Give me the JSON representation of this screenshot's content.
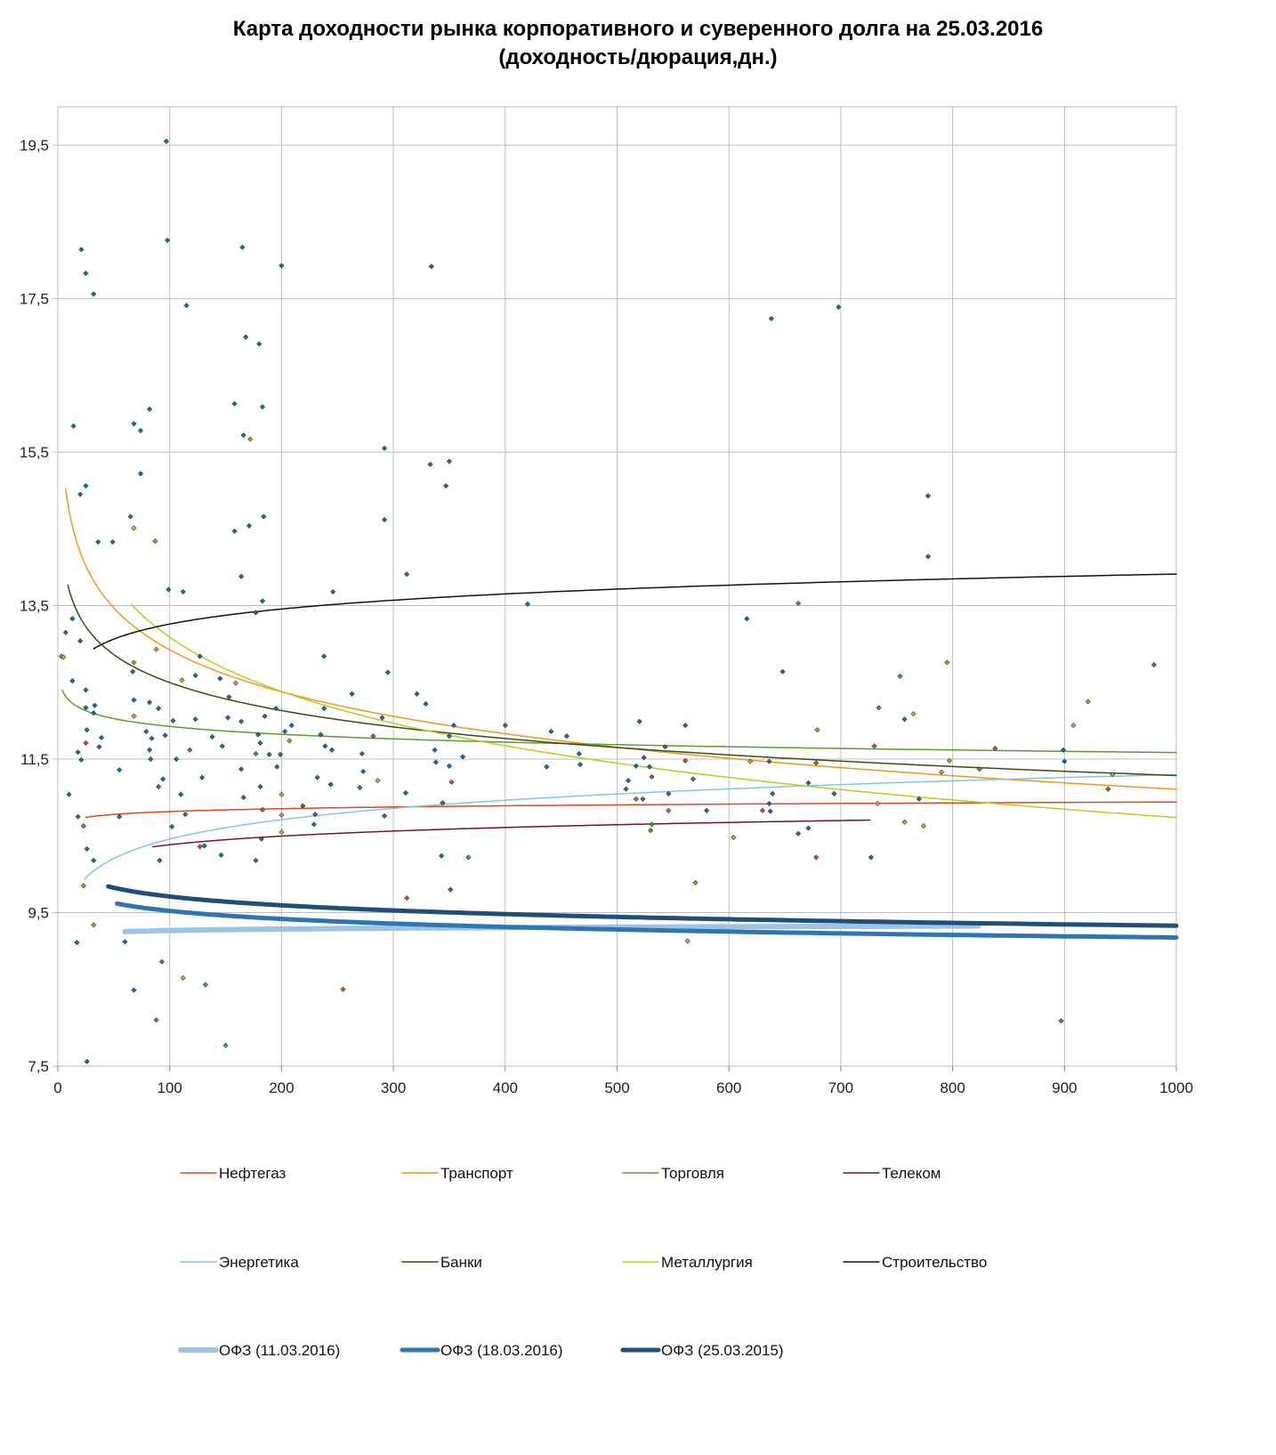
{
  "chart_data": {
    "type": "scatter",
    "title": "Карта доходности рынка корпоративного и суверенного долга на 25.03.2016",
    "subtitle": "(доходность/дюрация,дн.)",
    "xlabel": "",
    "ylabel": "",
    "xlim": [
      0,
      1000
    ],
    "ylim": [
      7.5,
      20
    ],
    "x_ticks": [
      0,
      100,
      200,
      300,
      400,
      500,
      600,
      700,
      800,
      900,
      1000
    ],
    "y_ticks": [
      7.5,
      9.5,
      11.5,
      13.5,
      15.5,
      17.5,
      19.5
    ],
    "y_tick_labels": [
      "7,5",
      "9,5",
      "11,5",
      "13,5",
      "15,5",
      "17,5",
      "19,5"
    ],
    "grid": true,
    "legend_position": "bottom",
    "point_colors": {
      "t": "#2a6d8f",
      "o": "#f29a3c",
      "r": "#e8461e",
      "g": "#5a9e2f",
      "y": "#b7a90c",
      "b": "#a0522d"
    },
    "points": [
      [
        97,
        19.55,
        "t"
      ],
      [
        98,
        18.26,
        "t"
      ],
      [
        21,
        18.14,
        "t"
      ],
      [
        25,
        17.83,
        "t"
      ],
      [
        32,
        17.56,
        "t"
      ],
      [
        165,
        18.17,
        "t"
      ],
      [
        200,
        17.93,
        "t"
      ],
      [
        334,
        17.92,
        "t"
      ],
      [
        115,
        17.41,
        "t"
      ],
      [
        638,
        17.24,
        "t"
      ],
      [
        698,
        17.39,
        "t"
      ],
      [
        168,
        17.0,
        "t"
      ],
      [
        180,
        16.91,
        "t"
      ],
      [
        158,
        16.13,
        "t"
      ],
      [
        183,
        16.09,
        "t"
      ],
      [
        82,
        16.06,
        "t"
      ],
      [
        14,
        15.84,
        "t"
      ],
      [
        68,
        15.87,
        "t"
      ],
      [
        74,
        15.78,
        "t"
      ],
      [
        166,
        15.72,
        "t"
      ],
      [
        172,
        15.67,
        "y"
      ],
      [
        292,
        15.55,
        "t"
      ],
      [
        333,
        15.34,
        "t"
      ],
      [
        350,
        15.38,
        "t"
      ],
      [
        74,
        15.22,
        "t"
      ],
      [
        347,
        15.06,
        "t"
      ],
      [
        25,
        15.06,
        "t"
      ],
      [
        20,
        14.95,
        "t"
      ],
      [
        778,
        14.93,
        "t"
      ],
      [
        65,
        14.66,
        "t"
      ],
      [
        68,
        14.51,
        "o"
      ],
      [
        184,
        14.66,
        "t"
      ],
      [
        292,
        14.62,
        "t"
      ],
      [
        171,
        14.54,
        "t"
      ],
      [
        158,
        14.47,
        "t"
      ],
      [
        36,
        14.33,
        "t"
      ],
      [
        49,
        14.33,
        "t"
      ],
      [
        87,
        14.34,
        "y"
      ],
      [
        778,
        14.14,
        "t"
      ],
      [
        312,
        13.91,
        "t"
      ],
      [
        164,
        13.88,
        "t"
      ],
      [
        99,
        13.71,
        "t"
      ],
      [
        112,
        13.68,
        "t"
      ],
      [
        246,
        13.68,
        "t"
      ],
      [
        183,
        13.56,
        "t"
      ],
      [
        420,
        13.52,
        "t"
      ],
      [
        662,
        13.53,
        "g"
      ],
      [
        177,
        13.41,
        "t"
      ],
      [
        13,
        13.33,
        "t"
      ],
      [
        616,
        13.33,
        "t"
      ],
      [
        7,
        13.15,
        "t"
      ],
      [
        20,
        13.04,
        "t"
      ],
      [
        3,
        12.84,
        "y"
      ],
      [
        5,
        12.83,
        "o"
      ],
      [
        88,
        12.93,
        "o"
      ],
      [
        127,
        12.84,
        "t"
      ],
      [
        238,
        12.84,
        "t"
      ],
      [
        68,
        12.76,
        "y"
      ],
      [
        795,
        12.76,
        "y"
      ],
      [
        980,
        12.73,
        "b"
      ],
      [
        67,
        12.64,
        "t"
      ],
      [
        295,
        12.63,
        "t"
      ],
      [
        648,
        12.64,
        "t"
      ],
      [
        13,
        12.52,
        "t"
      ],
      [
        111,
        12.53,
        "o"
      ],
      [
        123,
        12.59,
        "t"
      ],
      [
        145,
        12.55,
        "t"
      ],
      [
        753,
        12.58,
        "g"
      ],
      [
        159,
        12.49,
        "o"
      ],
      [
        321,
        12.35,
        "t"
      ],
      [
        263,
        12.35,
        "t"
      ],
      [
        153,
        12.31,
        "t"
      ],
      [
        25,
        12.4,
        "t"
      ],
      [
        68,
        12.27,
        "t"
      ],
      [
        921,
        12.25,
        "y"
      ],
      [
        82,
        12.24,
        "t"
      ],
      [
        329,
        12.22,
        "t"
      ],
      [
        734,
        12.17,
        "g"
      ],
      [
        25,
        12.17,
        "t"
      ],
      [
        33,
        12.2,
        "t"
      ],
      [
        90,
        12.16,
        "t"
      ],
      [
        195,
        12.16,
        "t"
      ],
      [
        238,
        12.16,
        "t"
      ],
      [
        765,
        12.09,
        "o"
      ],
      [
        32,
        12.1,
        "t"
      ],
      [
        68,
        12.06,
        "o"
      ],
      [
        103,
        12.0,
        "t"
      ],
      [
        123,
        12.02,
        "t"
      ],
      [
        152,
        12.04,
        "t"
      ],
      [
        164,
        11.99,
        "t"
      ],
      [
        185,
        12.06,
        "t"
      ],
      [
        290,
        12.04,
        "t"
      ],
      [
        400,
        11.94,
        "t"
      ],
      [
        354,
        11.94,
        "t"
      ],
      [
        520,
        11.99,
        "t"
      ],
      [
        561,
        11.94,
        "t"
      ],
      [
        757,
        12.02,
        "t"
      ],
      [
        679,
        11.88,
        "y"
      ],
      [
        908,
        11.94,
        "o"
      ],
      [
        26,
        11.88,
        "t"
      ],
      [
        39,
        11.78,
        "t"
      ],
      [
        79,
        11.86,
        "t"
      ],
      [
        84,
        11.77,
        "t"
      ],
      [
        96,
        11.81,
        "t"
      ],
      [
        138,
        11.79,
        "t"
      ],
      [
        179,
        11.82,
        "t"
      ],
      [
        203,
        11.86,
        "t"
      ],
      [
        209,
        11.94,
        "t"
      ],
      [
        235,
        11.82,
        "t"
      ],
      [
        282,
        11.8,
        "r"
      ],
      [
        350,
        11.8,
        "t"
      ],
      [
        441,
        11.86,
        "t"
      ],
      [
        455,
        11.8,
        "t"
      ],
      [
        18,
        11.59,
        "t"
      ],
      [
        25,
        11.71,
        "r"
      ],
      [
        37,
        11.66,
        "t"
      ],
      [
        82,
        11.62,
        "t"
      ],
      [
        118,
        11.62,
        "r"
      ],
      [
        147,
        11.67,
        "t"
      ],
      [
        181,
        11.71,
        "t"
      ],
      [
        207,
        11.74,
        "y"
      ],
      [
        239,
        11.67,
        "t"
      ],
      [
        245,
        11.62,
        "t"
      ],
      [
        337,
        11.62,
        "t"
      ],
      [
        543,
        11.66,
        "t"
      ],
      [
        730,
        11.67,
        "r"
      ],
      [
        899,
        11.62,
        "t"
      ],
      [
        838,
        11.64,
        "r"
      ],
      [
        21,
        11.49,
        "t"
      ],
      [
        83,
        11.5,
        "t"
      ],
      [
        106,
        11.5,
        "t"
      ],
      [
        177,
        11.57,
        "g"
      ],
      [
        189,
        11.56,
        "t"
      ],
      [
        199,
        11.56,
        "t"
      ],
      [
        272,
        11.57,
        "t"
      ],
      [
        362,
        11.53,
        "t"
      ],
      [
        466,
        11.57,
        "t"
      ],
      [
        524,
        11.52,
        "t"
      ],
      [
        467,
        11.43,
        "t"
      ],
      [
        561,
        11.48,
        "r"
      ],
      [
        619,
        11.47,
        "o"
      ],
      [
        636,
        11.47,
        "t"
      ],
      [
        678,
        11.45,
        "r"
      ],
      [
        797,
        11.48,
        "y"
      ],
      [
        900,
        11.47,
        "t"
      ],
      [
        338,
        11.46,
        "t"
      ],
      [
        350,
        11.41,
        "t"
      ],
      [
        437,
        11.4,
        "t"
      ],
      [
        517,
        11.41,
        "t"
      ],
      [
        529,
        11.4,
        "t"
      ],
      [
        824,
        11.37,
        "g"
      ],
      [
        55,
        11.36,
        "t"
      ],
      [
        196,
        11.4,
        "t"
      ],
      [
        164,
        11.37,
        "t"
      ],
      [
        273,
        11.34,
        "t"
      ],
      [
        232,
        11.26,
        "t"
      ],
      [
        129,
        11.26,
        "t"
      ],
      [
        94,
        11.24,
        "t"
      ],
      [
        568,
        11.24,
        "b"
      ],
      [
        790,
        11.33,
        "o"
      ],
      [
        943,
        11.3,
        "y"
      ],
      [
        531,
        11.27,
        "r"
      ],
      [
        510,
        11.22,
        "t"
      ],
      [
        352,
        11.2,
        "r"
      ],
      [
        286,
        11.22,
        "o"
      ],
      [
        244,
        11.17,
        "t"
      ],
      [
        671,
        11.19,
        "t"
      ],
      [
        90,
        11.14,
        "b"
      ],
      [
        181,
        11.14,
        "t"
      ],
      [
        270,
        11.13,
        "t"
      ],
      [
        508,
        11.11,
        "t"
      ],
      [
        939,
        11.11,
        "r"
      ],
      [
        10,
        11.04,
        "t"
      ],
      [
        110,
        11.04,
        "t"
      ],
      [
        166,
        11.0,
        "t"
      ],
      [
        200,
        11.04,
        "o"
      ],
      [
        311,
        11.06,
        "t"
      ],
      [
        546,
        11.05,
        "t"
      ],
      [
        694,
        11.05,
        "t"
      ],
      [
        639,
        11.05,
        "t"
      ],
      [
        517,
        10.98,
        "g"
      ],
      [
        523,
        10.98,
        "b"
      ],
      [
        770,
        10.98,
        "t"
      ],
      [
        344,
        10.93,
        "t"
      ],
      [
        733,
        10.92,
        "o"
      ],
      [
        636,
        10.92,
        "t"
      ],
      [
        219,
        10.89,
        "t"
      ],
      [
        183,
        10.84,
        "r"
      ],
      [
        580,
        10.83,
        "t"
      ],
      [
        546,
        10.83,
        "g"
      ],
      [
        630,
        10.83,
        "r"
      ],
      [
        637,
        10.82,
        "t"
      ],
      [
        114,
        10.78,
        "t"
      ],
      [
        230,
        10.78,
        "t"
      ],
      [
        18,
        10.75,
        "t"
      ],
      [
        55,
        10.75,
        "t"
      ],
      [
        292,
        10.76,
        "t"
      ],
      [
        200,
        10.77,
        "o"
      ],
      [
        531,
        10.65,
        "g"
      ],
      [
        757,
        10.68,
        "o"
      ],
      [
        774,
        10.63,
        "o"
      ],
      [
        23,
        10.63,
        "g"
      ],
      [
        102,
        10.62,
        "t"
      ],
      [
        229,
        10.65,
        "t"
      ],
      [
        530,
        10.57,
        "g"
      ],
      [
        662,
        10.53,
        "t"
      ],
      [
        671,
        10.6,
        "t"
      ],
      [
        604,
        10.48,
        "o"
      ],
      [
        200,
        10.55,
        "o"
      ],
      [
        127,
        10.36,
        "r"
      ],
      [
        131,
        10.37,
        "t"
      ],
      [
        182,
        10.46,
        "t"
      ],
      [
        26,
        10.33,
        "t"
      ],
      [
        146,
        10.25,
        "t"
      ],
      [
        343,
        10.24,
        "t"
      ],
      [
        367,
        10.22,
        "g"
      ],
      [
        32,
        10.18,
        "t"
      ],
      [
        91,
        10.18,
        "t"
      ],
      [
        177,
        10.18,
        "t"
      ],
      [
        678,
        10.22,
        "r"
      ],
      [
        727,
        10.22,
        "t"
      ],
      [
        570,
        9.89,
        "y"
      ],
      [
        23,
        9.85,
        "y"
      ],
      [
        351,
        9.8,
        "t"
      ],
      [
        312,
        9.69,
        "r"
      ],
      [
        32,
        9.34,
        "y"
      ],
      [
        17,
        9.11,
        "t"
      ],
      [
        60,
        9.12,
        "t"
      ],
      [
        563,
        9.13,
        "o"
      ],
      [
        93,
        8.86,
        "r"
      ],
      [
        112,
        8.65,
        "o"
      ],
      [
        68,
        8.49,
        "t"
      ],
      [
        132,
        8.56,
        "g"
      ],
      [
        255,
        8.5,
        "r"
      ],
      [
        88,
        8.1,
        "g"
      ],
      [
        897,
        8.09,
        "r"
      ],
      [
        150,
        7.77,
        "g"
      ],
      [
        26,
        7.56,
        "t"
      ]
    ],
    "series": [
      {
        "name": "Нефтегаз",
        "color": "#e8461e",
        "width": 1.5,
        "trend": "logarithmic",
        "x": [
          25,
          100,
          300,
          600,
          1000
        ],
        "y": [
          10.75,
          10.8,
          10.88,
          10.92,
          10.94
        ]
      },
      {
        "name": "Транспорт",
        "color": "#f7941d",
        "width": 1.5,
        "trend": "logarithmic",
        "x": [
          7,
          28,
          92,
          200,
          400,
          600,
          1000
        ],
        "y": [
          14.94,
          13.97,
          13.16,
          12.35,
          11.77,
          11.44,
          11.14
        ]
      },
      {
        "name": "Торговля",
        "color": "#5a9e2f",
        "width": 1.5,
        "trend": "logarithmic",
        "x": [
          4,
          44,
          200,
          600,
          1000
        ],
        "y": [
          12.4,
          12.05,
          11.82,
          11.67,
          11.58
        ]
      },
      {
        "name": "Телеком",
        "color": "#7b0f2a",
        "width": 1.5,
        "trend": "logarithmic",
        "x": [
          85,
          346,
          726
        ],
        "y": [
          10.36,
          10.58,
          10.71
        ]
      },
      {
        "name": "Энергетика",
        "color": "#7fc4f0",
        "width": 1.5,
        "trend": "logarithmic",
        "x": [
          24,
          76,
          200,
          400,
          600,
          1000
        ],
        "y": [
          9.95,
          10.32,
          10.72,
          10.99,
          11.13,
          11.27
        ]
      },
      {
        "name": "Банки",
        "color": "#3d4a10",
        "width": 1.5,
        "trend": "logarithmic",
        "x": [
          9,
          44,
          92,
          200,
          400,
          600,
          1000
        ],
        "y": [
          13.74,
          12.96,
          12.58,
          12.11,
          11.74,
          11.55,
          11.3
        ]
      },
      {
        "name": "Металлургия",
        "color": "#b5cf1f",
        "width": 1.5,
        "trend": "logarithmic",
        "x": [
          66,
          107,
          200,
          400,
          600,
          1000
        ],
        "y": [
          13.44,
          13.1,
          12.37,
          11.71,
          11.27,
          10.7
        ]
      },
      {
        "name": "Строительство",
        "color": "#111111",
        "width": 1.5,
        "trend": "logarithmic",
        "x": [
          32,
          92,
          200,
          400,
          600,
          1000
        ],
        "y": [
          12.91,
          13.27,
          13.47,
          13.64,
          13.77,
          13.9
        ]
      },
      {
        "name": "ОФЗ (11.03.2016)",
        "color": "#9dc3e6",
        "width": 6,
        "trend": "logarithmic",
        "x": [
          60,
          200,
          600,
          823
        ],
        "y": [
          9.25,
          9.29,
          9.32,
          9.32
        ]
      },
      {
        "name": "ОФЗ (18.03.2016)",
        "color": "#2e75b6",
        "width": 5,
        "trend": "logarithmic",
        "x": [
          53,
          107,
          200,
          400,
          600,
          1000
        ],
        "y": [
          9.62,
          9.51,
          9.42,
          9.31,
          9.25,
          9.18
        ]
      },
      {
        "name": "ОФЗ (25.03.2015)",
        "color": "#1f4e79",
        "width": 5,
        "trend": "logarithmic",
        "x": [
          45,
          107,
          200,
          400,
          600,
          1000
        ],
        "y": [
          9.85,
          9.69,
          9.59,
          9.48,
          9.42,
          9.33
        ]
      }
    ]
  }
}
